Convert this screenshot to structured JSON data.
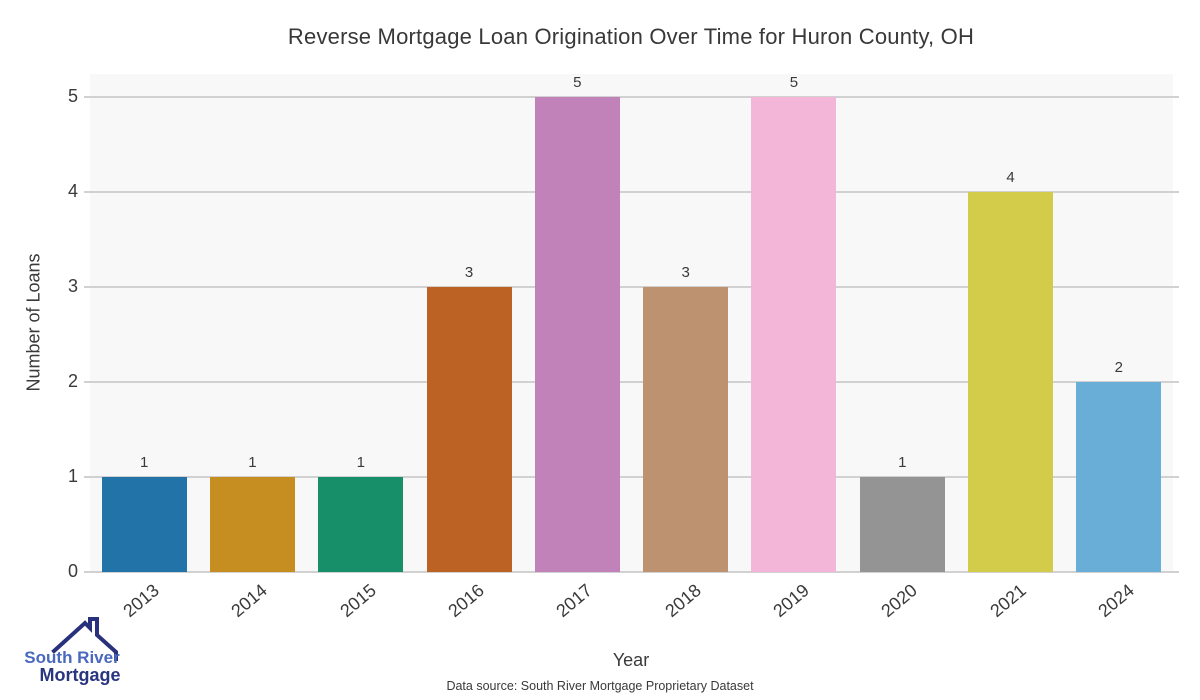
{
  "title": "Reverse Mortgage Loan Origination Over Time for Huron County, OH",
  "footer": "Data source: South River Mortgage Proprietary Dataset",
  "logo": {
    "line1": "South River",
    "line2": "Mortgage"
  },
  "colors": {
    "page_bg": "#ffffff",
    "plot_bg": "#f8f8f8",
    "gridline": "#d1d1d1",
    "text": "#3a3a3a",
    "logo_blue": "#4a68bd",
    "logo_navy": "#29357f"
  },
  "chart_data": {
    "type": "bar",
    "title": "Reverse Mortgage Loan Origination Over Time for Huron County, OH",
    "xlabel": "Year",
    "ylabel": "Number of Loans",
    "categories": [
      "2013",
      "2014",
      "2015",
      "2016",
      "2017",
      "2018",
      "2019",
      "2020",
      "2021",
      "2024"
    ],
    "values": [
      1,
      1,
      1,
      3,
      5,
      3,
      5,
      1,
      4,
      2
    ],
    "bar_colors": [
      "#2274a8",
      "#c68e20",
      "#17906a",
      "#bb6224",
      "#c181b9",
      "#bd9270",
      "#f3b6d9",
      "#949494",
      "#d3cc4a",
      "#69aed6"
    ],
    "yticks": [
      0,
      1,
      2,
      3,
      4,
      5
    ],
    "ylim": [
      0,
      5.24
    ],
    "grid": "horizontal",
    "legend": "none",
    "bar_value_labels": [
      1,
      1,
      1,
      3,
      5,
      3,
      5,
      1,
      4,
      2
    ]
  }
}
